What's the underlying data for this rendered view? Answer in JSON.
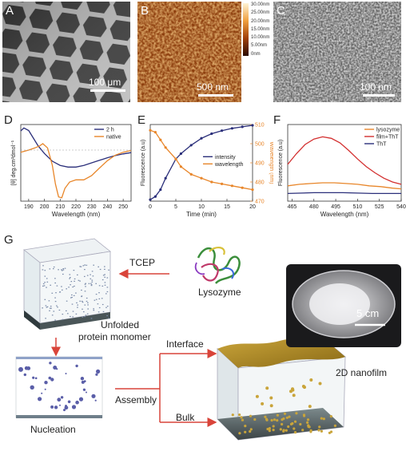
{
  "panels": {
    "A": {
      "label": "A",
      "scalebar": "100 μm"
    },
    "B": {
      "label": "B",
      "scalebar": "500 nm",
      "colorbar_ticks": [
        "30.00nm",
        "25.00nm",
        "20.00nm",
        "15.00nm",
        "10.00nm",
        "5.00nm",
        "0nm"
      ]
    },
    "C": {
      "label": "C",
      "scalebar": "100 nm"
    },
    "D": {
      "label": "D"
    },
    "E": {
      "label": "E"
    },
    "F": {
      "label": "F"
    },
    "G": {
      "label": "G"
    }
  },
  "chart_data": [
    {
      "type": "line",
      "panel": "D",
      "xlabel": "Wavelength (nm)",
      "ylabel": "[θ] deg.cm²dmol⁻¹",
      "xlim": [
        185,
        255
      ],
      "ylim": [
        -12,
        6
      ],
      "x_ticks": [
        190,
        200,
        210,
        220,
        230,
        240,
        250
      ],
      "legend": "top-right",
      "series": [
        {
          "name": "2 h",
          "color": "#2b2f7a",
          "x": [
            185,
            187,
            190,
            193,
            196,
            200,
            205,
            210,
            215,
            220,
            225,
            230,
            235,
            240,
            245,
            250,
            255
          ],
          "y": [
            4.5,
            5.2,
            4.6,
            2.8,
            1.0,
            -0.8,
            -2.6,
            -3.6,
            -4.0,
            -4.0,
            -3.6,
            -3.0,
            -2.4,
            -1.8,
            -1.3,
            -0.9,
            -0.6
          ]
        },
        {
          "name": "native",
          "color": "#e8862a",
          "x": [
            185,
            190,
            194,
            197,
            199,
            202,
            205,
            207,
            209,
            211,
            213,
            216,
            220,
            225,
            230,
            235,
            240,
            245,
            250,
            255
          ],
          "y": [
            -0.5,
            0.0,
            0.5,
            1.0,
            1.5,
            0.5,
            -3.5,
            -8.0,
            -11.0,
            -11.2,
            -9.0,
            -7.5,
            -7.0,
            -7.0,
            -6.0,
            -4.2,
            -2.5,
            -1.2,
            -0.5,
            -0.1
          ]
        }
      ]
    },
    {
      "type": "line",
      "panel": "E",
      "xlabel": "Time (min)",
      "ylabel": "Fluorescence (a.u)",
      "y2label": "Wavelength (nm)",
      "xlim": [
        0,
        20
      ],
      "x_ticks": [
        0,
        5,
        10,
        15,
        20
      ],
      "ylim": [
        0,
        1
      ],
      "y2lim": [
        470,
        510
      ],
      "y2_ticks": [
        470,
        480,
        490,
        500,
        510
      ],
      "legend": "center-right",
      "series": [
        {
          "name": "intensity",
          "color": "#2b2f7a",
          "axis": "left",
          "x": [
            0,
            1,
            2,
            3,
            5,
            6,
            8,
            10,
            12,
            14,
            16,
            18,
            20
          ],
          "y": [
            0.02,
            0.06,
            0.15,
            0.3,
            0.55,
            0.62,
            0.73,
            0.82,
            0.88,
            0.92,
            0.95,
            0.97,
            0.99
          ]
        },
        {
          "name": "wavelength",
          "color": "#e8862a",
          "axis": "right",
          "x": [
            0,
            1,
            2,
            3,
            5,
            6,
            8,
            10,
            12,
            14,
            16,
            18,
            20
          ],
          "y": [
            507,
            506,
            502,
            498,
            492,
            488,
            484,
            482,
            480,
            479,
            478,
            477,
            476
          ]
        }
      ]
    },
    {
      "type": "line",
      "panel": "F",
      "xlabel": "Wavelength (nm)",
      "ylabel": "Fluorescence (a.u)",
      "xlim": [
        462,
        540
      ],
      "x_ticks": [
        465,
        480,
        495,
        510,
        525,
        540
      ],
      "ylim": [
        0,
        1
      ],
      "legend": "top-right",
      "series": [
        {
          "name": "lysozyme",
          "color": "#e8862a",
          "x": [
            462,
            470,
            478,
            486,
            494,
            502,
            510,
            518,
            526,
            534,
            540
          ],
          "y": [
            0.2,
            0.22,
            0.23,
            0.24,
            0.24,
            0.23,
            0.22,
            0.2,
            0.19,
            0.17,
            0.16
          ]
        },
        {
          "name": "film+ThT",
          "color": "#d32f2f",
          "x": [
            462,
            468,
            474,
            480,
            486,
            492,
            498,
            504,
            510,
            516,
            522,
            528,
            534,
            540
          ],
          "y": [
            0.48,
            0.62,
            0.74,
            0.81,
            0.84,
            0.82,
            0.76,
            0.66,
            0.55,
            0.45,
            0.37,
            0.3,
            0.25,
            0.22
          ]
        },
        {
          "name": "ThT",
          "color": "#2b2f7a",
          "x": [
            462,
            480,
            500,
            520,
            540
          ],
          "y": [
            0.1,
            0.11,
            0.11,
            0.1,
            0.1
          ]
        }
      ]
    }
  ],
  "schematic": {
    "tcep": "TCEP",
    "lysozyme": "Lysozyme",
    "unfolded_line1": "Unfolded",
    "unfolded_line2": "protein monomer",
    "nucleation": "Nucleation",
    "assembly": "Assembly",
    "interface": "Interface",
    "bulk": "Bulk",
    "nanofilm": "2D nanofilm",
    "photo_scale": "5 cm"
  }
}
